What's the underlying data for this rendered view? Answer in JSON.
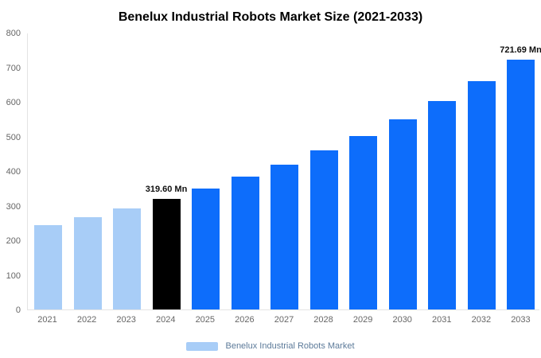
{
  "title": "Benelux Industrial Robots Market Size (2021-2033)",
  "legend": {
    "label": "Benelux Industrial Robots Market",
    "swatch_color": "#a8cdf7",
    "text_color": "#5c7a99"
  },
  "chart_data": {
    "type": "bar",
    "title": "Benelux Industrial Robots Market Size (2021-2033)",
    "categories": [
      "2021",
      "2022",
      "2023",
      "2024",
      "2025",
      "2026",
      "2027",
      "2028",
      "2029",
      "2030",
      "2031",
      "2032",
      "2033"
    ],
    "values": [
      244,
      267,
      292,
      319.6,
      350,
      383,
      419,
      459,
      502,
      550,
      602,
      659,
      721.69
    ],
    "unit": "Mn",
    "ylim": [
      0,
      800
    ],
    "ytick_step": 100,
    "grid": false,
    "legend_position": "bottom",
    "bar_colors": [
      "#a8cdf7",
      "#a8cdf7",
      "#a8cdf7",
      "#000000",
      "#0d6dfb",
      "#0d6dfb",
      "#0d6dfb",
      "#0d6dfb",
      "#0d6dfb",
      "#0d6dfb",
      "#0d6dfb",
      "#0d6dfb",
      "#0d6dfb"
    ],
    "annotations": [
      {
        "category": "2024",
        "text": "319.60 Mn"
      },
      {
        "category": "2033",
        "text": "721.69 Mn"
      }
    ]
  }
}
